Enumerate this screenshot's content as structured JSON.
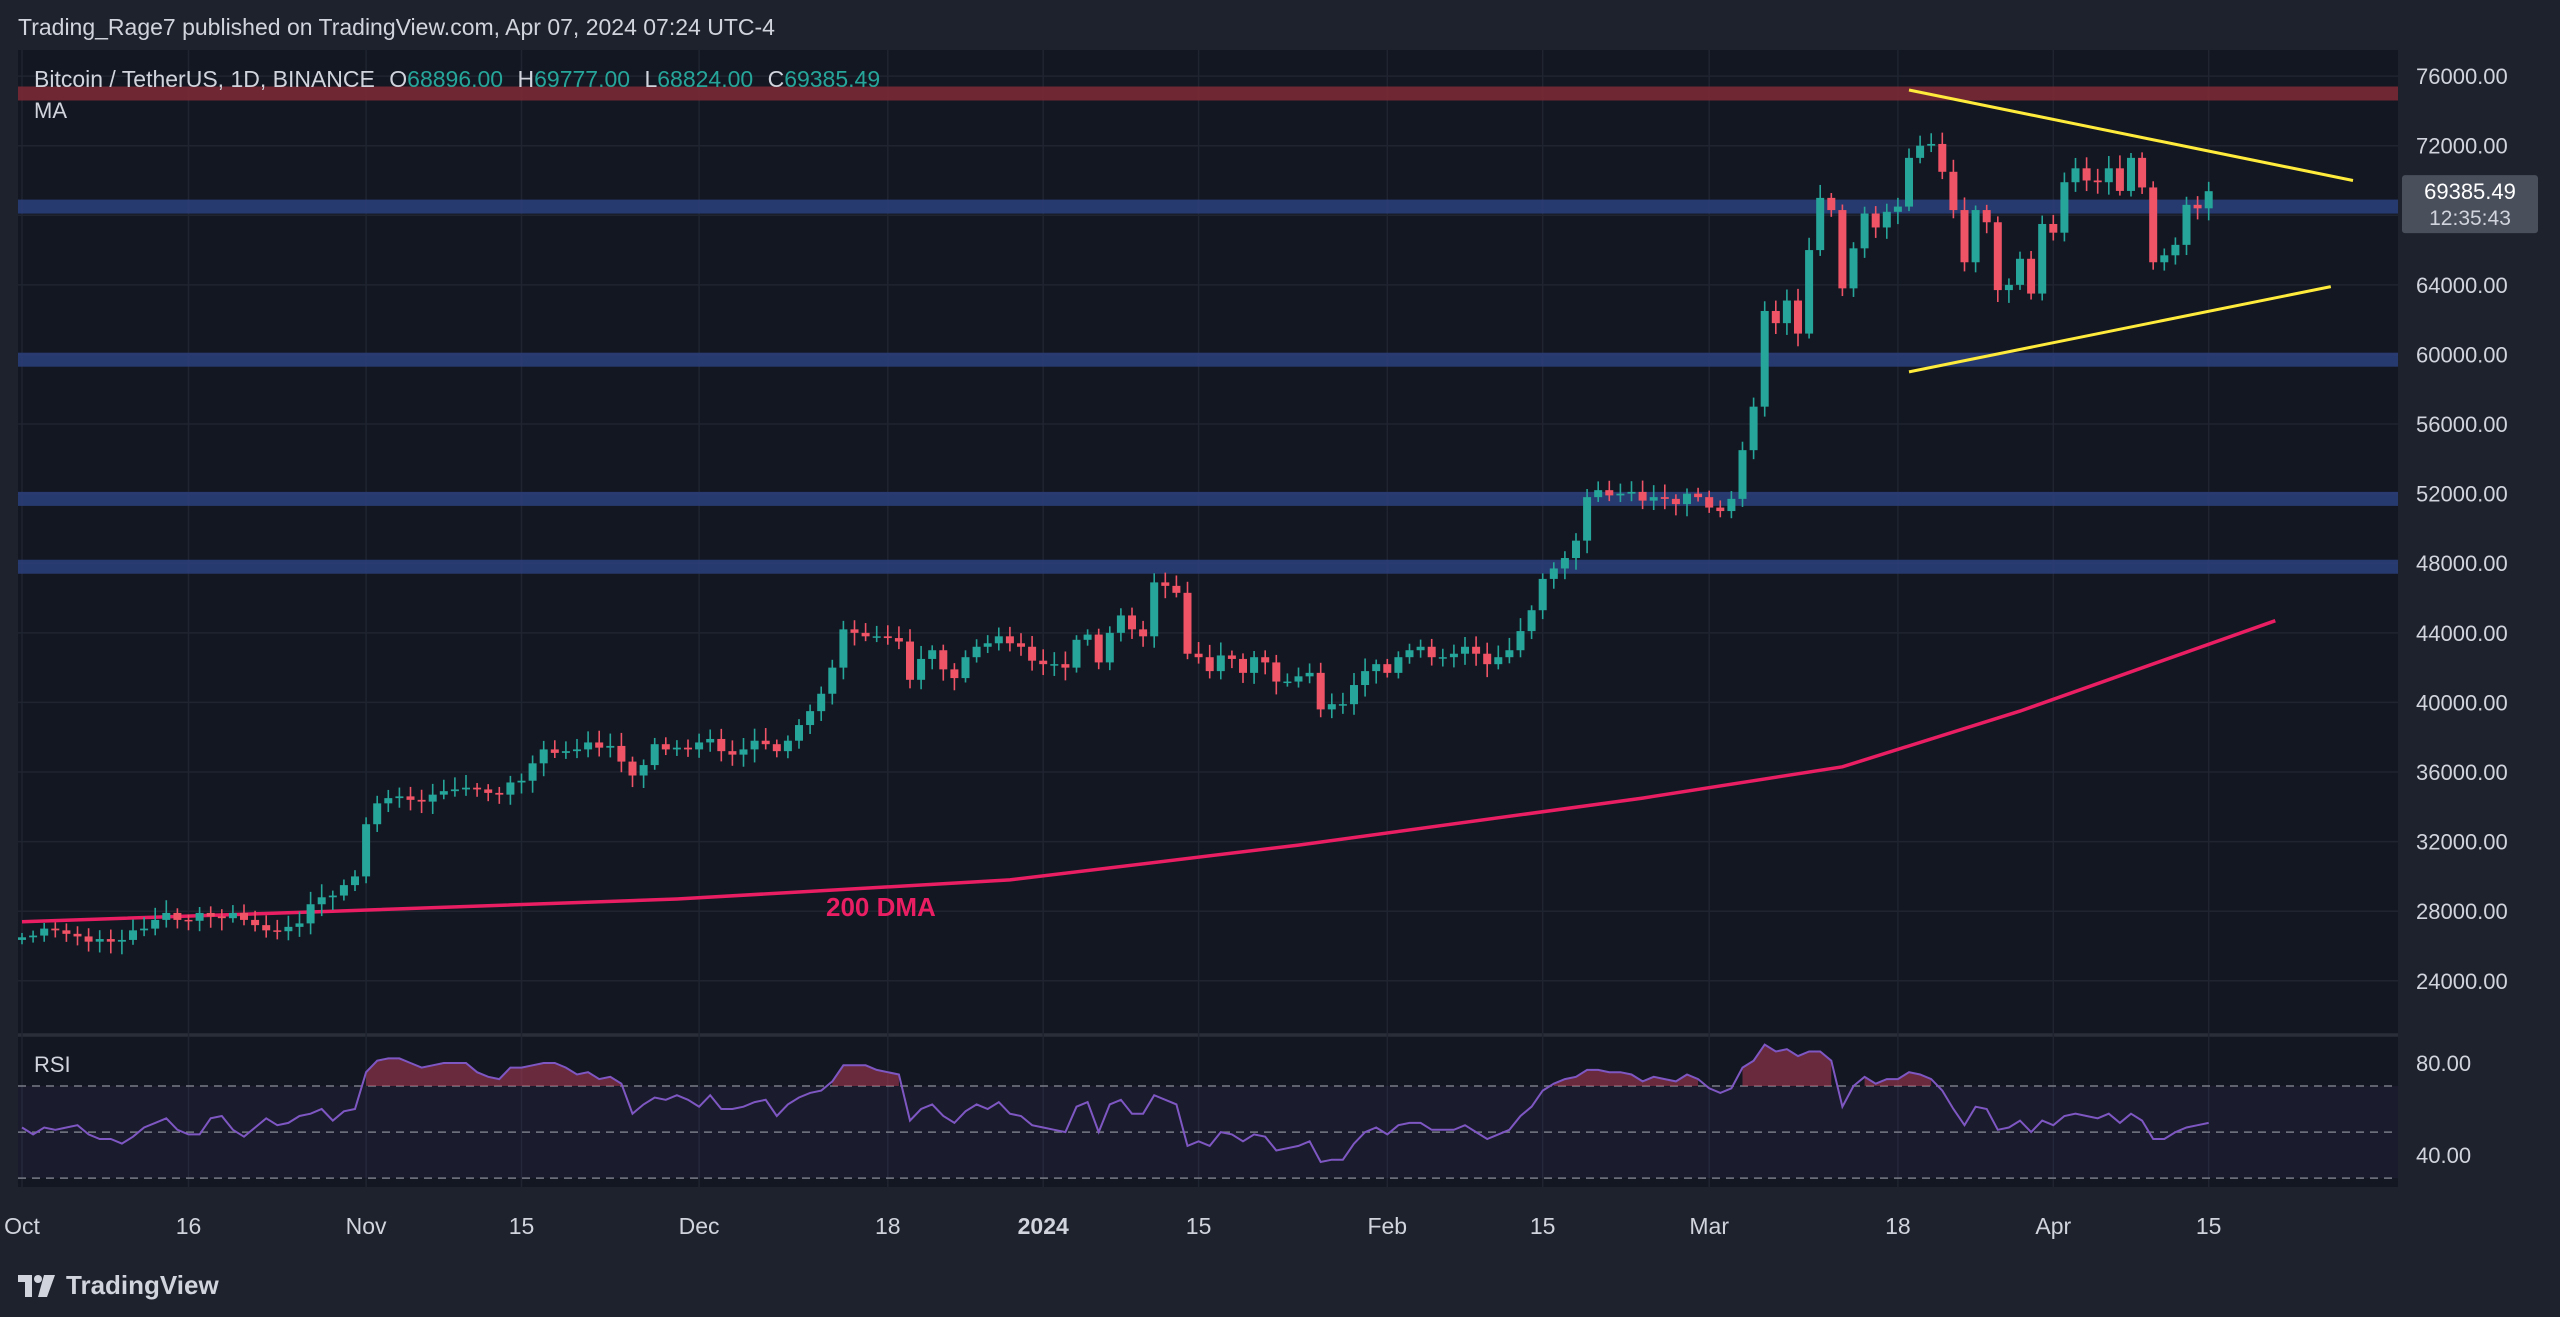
{
  "header": {
    "published_by": "Trading_Rage7 published on TradingView.com, Apr 07, 2024 07:24 UTC-4"
  },
  "legend": {
    "symbol": "Bitcoin / TetherUS, 1D, BINANCE",
    "open_key": "O",
    "open": "68896.00",
    "high_key": "H",
    "high": "69777.00",
    "low_key": "L",
    "low": "68824.00",
    "close_key": "C",
    "close": "69385.49",
    "indicator": "MA"
  },
  "price_tag": {
    "price": "69385.49",
    "countdown": "12:35:43"
  },
  "rsi_label": "RSI",
  "brand": "TradingView",
  "colors": {
    "up": "#26a69a",
    "down": "#ef5366",
    "ma": "#e91e63",
    "triangle": "#ffeb3b",
    "support": "#2a3e78",
    "resistance": "#7a2a35",
    "rsi": "#7e57c2"
  },
  "chart_data": {
    "type": "candlestick",
    "title": "Bitcoin / TetherUS, 1D, BINANCE",
    "y_ticks": [
      "76000.00",
      "72000.00",
      "68000.00",
      "64000.00",
      "60000.00",
      "56000.00",
      "52000.00",
      "48000.00",
      "44000.00",
      "40000.00",
      "36000.00",
      "32000.00",
      "28000.00",
      "24000.00"
    ],
    "ylim": [
      21000,
      77500
    ],
    "x_ticks": [
      {
        "label": "Oct",
        "day": 0
      },
      {
        "label": "16",
        "day": 15
      },
      {
        "label": "Nov",
        "day": 31
      },
      {
        "label": "15",
        "day": 45
      },
      {
        "label": "Dec",
        "day": 61
      },
      {
        "label": "18",
        "day": 78
      },
      {
        "label": "2024",
        "day": 92
      },
      {
        "label": "15",
        "day": 106
      },
      {
        "label": "Feb",
        "day": 123
      },
      {
        "label": "15",
        "day": 137
      },
      {
        "label": "Mar",
        "day": 152
      },
      {
        "label": "18",
        "day": 169
      },
      {
        "label": "Apr",
        "day": 183
      },
      {
        "label": "15",
        "day": 197
      }
    ],
    "first_date": "2023-09-17",
    "last_date": "2024-04-07",
    "horizontal_levels": [
      {
        "price": 75000,
        "kind": "resistance"
      },
      {
        "price": 68500,
        "kind": "support"
      },
      {
        "price": 59700,
        "kind": "support"
      },
      {
        "price": 51700,
        "kind": "support"
      },
      {
        "price": 47800,
        "kind": "support"
      }
    ],
    "triangle": {
      "upper": [
        [
          "2024-03-05",
          75200
        ],
        [
          "2024-04-14",
          70000
        ]
      ],
      "lower": [
        [
          "2024-03-05",
          59000
        ],
        [
          "2024-04-12",
          63900
        ]
      ]
    },
    "ma_label": "200 DMA",
    "ma_points": [
      [
        "2023-09-17",
        27400
      ],
      [
        "2023-10-15",
        28000
      ],
      [
        "2023-11-15",
        28700
      ],
      [
        "2023-12-15",
        29800
      ],
      [
        "2024-01-10",
        31800
      ],
      [
        "2024-02-10",
        34500
      ],
      [
        "2024-02-28",
        36300
      ],
      [
        "2024-03-15",
        39500
      ],
      [
        "2024-04-07",
        44700
      ]
    ],
    "closes": [
      26500,
      26600,
      27000,
      26900,
      26700,
      26550,
      26250,
      26400,
      26250,
      26350,
      26900,
      27000,
      27500,
      27900,
      27500,
      27450,
      27900,
      27700,
      27600,
      27900,
      27500,
      27200,
      26900,
      26850,
      27100,
      27300,
      28400,
      28800,
      28900,
      29500,
      30000,
      33000,
      34200,
      34500,
      34600,
      34400,
      34300,
      34700,
      34900,
      35000,
      35100,
      35000,
      34800,
      34700,
      35400,
      35500,
      36500,
      37300,
      37100,
      37200,
      37300,
      37700,
      37400,
      37500,
      36600,
      35800,
      36400,
      37600,
      37300,
      37400,
      37300,
      37700,
      37900,
      37200,
      37000,
      37300,
      37800,
      37600,
      37200,
      37800,
      38700,
      39500,
      40500,
      42000,
      44200,
      44000,
      43800,
      43800,
      43700,
      43500,
      41300,
      42500,
      43000,
      41900,
      41400,
      42600,
      43200,
      43400,
      43800,
      43400,
      43200,
      42400,
      42200,
      42200,
      42000,
      43600,
      43900,
      42300,
      44000,
      45000,
      44200,
      43800,
      46900,
      46700,
      46300,
      42800,
      42600,
      41800,
      42700,
      42500,
      41700,
      42600,
      42300,
      41200,
      41200,
      41500,
      41700,
      39600,
      39900,
      39900,
      41000,
      41800,
      42200,
      41700,
      42600,
      43000,
      43200,
      42600,
      42600,
      42800,
      43200,
      42800,
      42200,
      42600,
      43000,
      44100,
      45300,
      47100,
      47700,
      48300,
      49300,
      51800,
      52200,
      51900,
      52000,
      52100,
      51600,
      51800,
      51700,
      51400,
      52000,
      51800,
      51200,
      51000,
      51700,
      54500,
      57000,
      62500,
      61800,
      63100,
      61200,
      66000,
      69000,
      68300,
      63800,
      66100,
      68100,
      67300,
      68200,
      68500,
      71300,
      72000,
      72100,
      70500,
      68300,
      65300,
      68300,
      67600,
      63700,
      64000,
      65500,
      63500,
      67500,
      67000,
      69900,
      70700,
      70000,
      69900,
      70700,
      69400,
      71300,
      69600,
      65300,
      65700,
      66300,
      68600,
      68400,
      69385
    ],
    "rsi": {
      "levels": [
        70,
        50,
        30
      ],
      "y_ticks": [
        "80.00",
        "40.00"
      ],
      "ylim": [
        27,
        90
      ],
      "values": [
        52,
        49,
        52,
        51,
        52,
        53,
        49,
        47,
        47,
        45,
        48,
        52,
        54,
        56,
        51,
        49,
        49,
        56,
        57,
        51,
        48,
        52,
        56,
        53,
        54,
        57,
        58,
        60,
        55,
        59,
        60,
        76,
        81,
        82,
        82,
        80,
        78,
        79,
        80,
        80,
        80,
        76,
        74,
        73,
        78,
        78,
        79,
        80,
        80,
        78,
        75,
        76,
        73,
        74,
        71,
        58,
        62,
        65,
        64,
        66,
        64,
        61,
        66,
        60,
        60,
        61,
        63,
        64,
        57,
        62,
        65,
        67,
        68,
        72,
        79,
        79,
        79,
        77,
        76,
        75,
        55,
        60,
        62,
        57,
        54,
        59,
        62,
        60,
        63,
        58,
        57,
        53,
        52,
        51,
        50,
        61,
        63,
        50,
        62,
        64,
        58,
        58,
        66,
        64,
        62,
        44,
        46,
        44,
        50,
        49,
        46,
        49,
        48,
        42,
        43,
        44,
        46,
        37,
        38,
        38,
        45,
        50,
        52,
        49,
        53,
        54,
        54,
        51,
        51,
        51,
        53,
        50,
        47,
        49,
        51,
        57,
        61,
        68,
        71,
        73,
        74,
        77,
        77,
        76,
        76,
        75,
        72,
        74,
        73,
        72,
        75,
        73,
        69,
        67,
        69,
        78,
        81,
        88,
        85,
        86,
        83,
        85,
        85,
        81,
        61,
        70,
        74,
        71,
        73,
        73,
        76,
        75,
        73,
        68,
        60,
        53,
        61,
        60,
        51,
        52,
        55,
        50,
        55,
        53,
        57,
        58,
        57,
        56,
        58,
        54,
        58,
        55,
        47,
        47,
        50,
        52,
        53,
        54
      ]
    }
  }
}
